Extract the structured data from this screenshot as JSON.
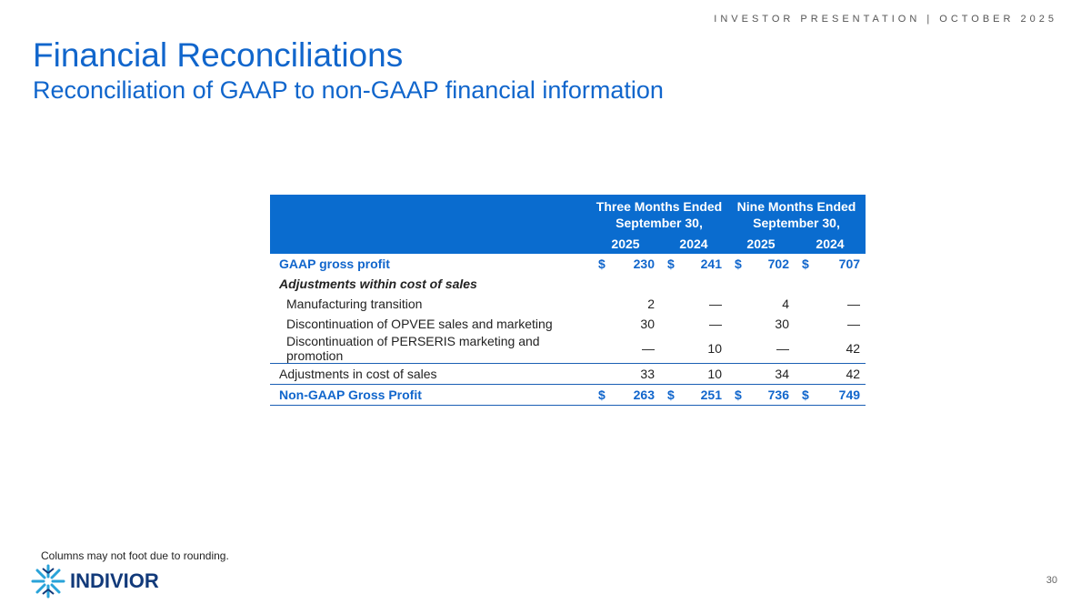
{
  "header": {
    "tag": "INVESTOR PRESENTATION | OCTOBER 2025",
    "title": "Financial Reconciliations",
    "subtitle": "Reconciliation of GAAP to non-GAAP financial information"
  },
  "table": {
    "groups": [
      "Three Months Ended September 30,",
      "Nine Months Ended September 30,"
    ],
    "years": [
      "2025",
      "2024",
      "2025",
      "2024"
    ],
    "rows": [
      {
        "label": "GAAP gross profit",
        "currency": "$",
        "values": [
          230,
          241,
          702,
          707
        ]
      },
      {
        "label": "Adjustments within cost of sales",
        "items": [
          {
            "label": "Manufacturing transition",
            "values": [
              2,
              "—",
              4,
              "—"
            ]
          },
          {
            "label": "Discontinuation of OPVEE sales and marketing",
            "values": [
              30,
              "—",
              30,
              "—"
            ]
          },
          {
            "label": "Discontinuation of PERSERIS marketing and promotion",
            "values": [
              "—",
              10,
              "—",
              42
            ]
          }
        ]
      },
      {
        "label": "Adjustments in cost of sales",
        "values": [
          33,
          10,
          34,
          42
        ]
      },
      {
        "label": "Non-GAAP Gross Profit",
        "currency": "$",
        "values": [
          263,
          251,
          736,
          749
        ]
      }
    ]
  },
  "footnote": "Columns may not foot due to rounding.",
  "logo": "INDIVIOR",
  "page_number": "30"
}
